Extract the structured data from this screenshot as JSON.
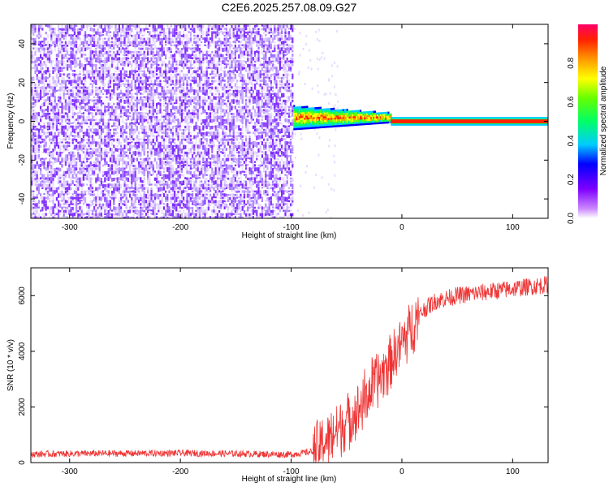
{
  "title": "C2E6.2025.257.08.09.G27",
  "chart_data": [
    {
      "type": "heatmap",
      "xlabel": "Height of straight line (km)",
      "ylabel": "Frequency (Hz)",
      "xlim": [
        -335,
        132
      ],
      "ylim": [
        -50,
        50
      ],
      "x_ticks": [
        -300,
        -200,
        -100,
        0,
        100
      ],
      "y_ticks": [
        -40,
        -20,
        0,
        20,
        40
      ],
      "colorbar": {
        "label": "Normalized spectral amplitude",
        "range": [
          0,
          1
        ],
        "ticks": [
          "0.0",
          "0.2",
          "0.4",
          "0.6",
          "0.8"
        ],
        "tick_values": [
          0.0,
          0.2,
          0.4,
          0.6,
          0.8
        ]
      },
      "regions": [
        {
          "x_range": [
            -335,
            -98
          ],
          "frequency_range": [
            -50,
            50
          ],
          "amplitude": "0.0-0.2 noise"
        },
        {
          "x_range": [
            -98,
            -10
          ],
          "frequency_center": 2,
          "frequency_halfwidth": 6,
          "amplitude": "0.2-0.9"
        },
        {
          "x_range": [
            -10,
            132
          ],
          "frequency_center": 0,
          "frequency_halfwidth": 1,
          "amplitude": "~1.0"
        }
      ]
    },
    {
      "type": "line",
      "xlabel": "Height of straight line (km)",
      "ylabel": "SNR (10 * v/v)",
      "xlim": [
        -335,
        132
      ],
      "ylim": [
        0,
        7000
      ],
      "x_ticks": [
        -300,
        -200,
        -100,
        0,
        100
      ],
      "y_ticks": [
        0,
        2000,
        4000,
        6000
      ],
      "color": "#ee3333",
      "series": [
        {
          "x": [
            -335,
            -300,
            -250,
            -200,
            -150,
            -100,
            -80,
            -60,
            -40,
            -30,
            -20,
            -10,
            0,
            10,
            20,
            30,
            50,
            80,
            100,
            132
          ],
          "y": [
            300,
            320,
            330,
            340,
            320,
            290,
            400,
            1100,
            1900,
            2500,
            3100,
            3700,
            4300,
            5000,
            5500,
            5800,
            6000,
            6150,
            6250,
            6400
          ]
        }
      ]
    }
  ]
}
